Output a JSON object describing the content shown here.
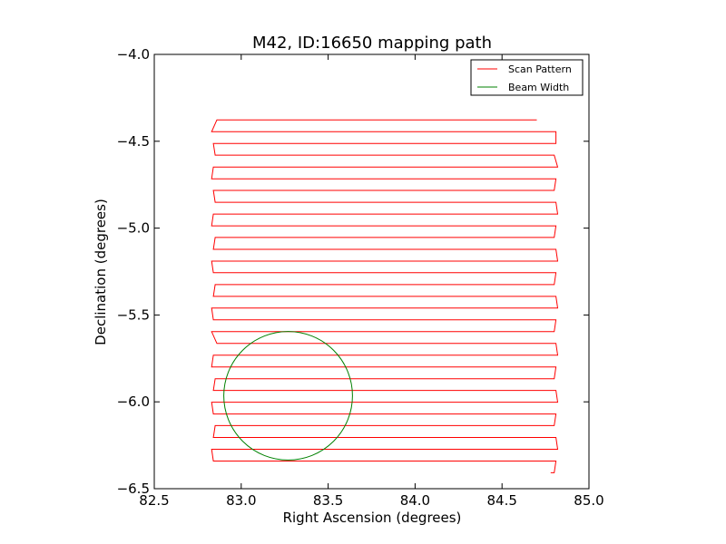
{
  "chart_data": {
    "type": "line",
    "title": "M42, ID:16650 mapping path",
    "xlabel": "Right Ascension (degrees)",
    "ylabel": "Declination (degrees)",
    "xlim": [
      82.5,
      85.0
    ],
    "ylim": [
      -6.5,
      -4.0
    ],
    "xticks": [
      82.5,
      83.0,
      83.5,
      84.0,
      84.5,
      85.0
    ],
    "xtick_labels": [
      "82.5",
      "83.0",
      "83.5",
      "84.0",
      "84.5",
      "85.0"
    ],
    "yticks": [
      -4.0,
      -4.5,
      -5.0,
      -5.5,
      -6.0,
      -6.5
    ],
    "ytick_labels": [
      "−4.0",
      "−4.5",
      "−5.0",
      "−5.5",
      "−6.0",
      "−6.5"
    ],
    "grid": false,
    "legend_position": "top-right",
    "series": [
      {
        "name": "Scan Pattern",
        "color": "#ff0000",
        "kind": "raster-scan",
        "rows_dec": [
          -4.377,
          -4.445,
          -4.513,
          -4.58,
          -4.648,
          -4.716,
          -4.783,
          -4.851,
          -4.919,
          -4.987,
          -5.054,
          -5.122,
          -5.19,
          -5.257,
          -5.325,
          -5.393,
          -5.46,
          -5.528,
          -5.596,
          -5.664,
          -5.731,
          -5.799,
          -5.867,
          -5.934,
          -6.002,
          -6.07,
          -6.137,
          -6.205,
          -6.273,
          -6.341,
          -6.408
        ],
        "left_ra": [
          82.86,
          82.83,
          82.84,
          82.85,
          82.84,
          82.83,
          82.84,
          82.85,
          82.84,
          82.83,
          82.85,
          82.84,
          82.83,
          82.84,
          82.85,
          82.84,
          82.83,
          82.84,
          82.83,
          82.86,
          82.84,
          82.83,
          82.85,
          82.84,
          82.83,
          82.84,
          82.85,
          82.84,
          82.83,
          82.84,
          82.85
        ],
        "right_ra": [
          84.8,
          84.81,
          84.81,
          84.8,
          84.82,
          84.81,
          84.8,
          84.81,
          84.82,
          84.81,
          84.8,
          84.81,
          84.82,
          84.81,
          84.8,
          84.81,
          84.82,
          84.81,
          84.8,
          84.81,
          84.82,
          84.81,
          84.8,
          84.81,
          84.82,
          84.81,
          84.8,
          84.81,
          84.82,
          84.81,
          84.8
        ],
        "start_ra": 84.7,
        "end_ra": 84.78
      },
      {
        "name": "Beam Width",
        "color": "#008000",
        "kind": "circle",
        "center": [
          83.27,
          -5.965
        ],
        "radius_ra": 0.37,
        "radius_dec": 0.37
      }
    ]
  }
}
